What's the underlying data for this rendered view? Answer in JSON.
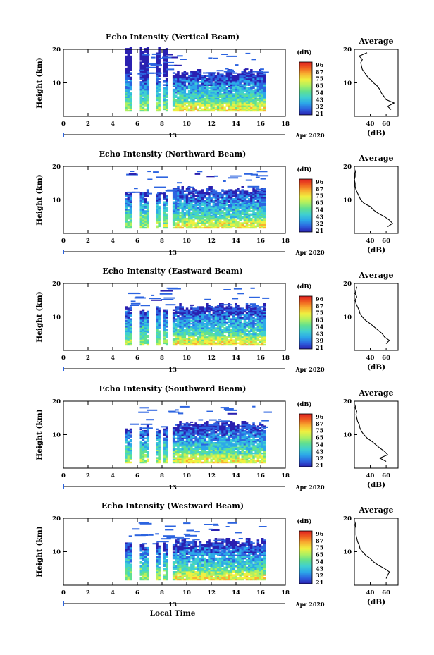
{
  "chart_data": [
    {
      "type": "heatmap",
      "title": "Echo Intensity (Vertical Beam)",
      "ylabel": "Height (km)",
      "xlim": [
        0,
        18
      ],
      "ylim": [
        0,
        20
      ],
      "xticks": [
        "0",
        "2",
        "4",
        "6",
        "8",
        "10",
        "12",
        "14",
        "16",
        "18"
      ],
      "yticks": [
        "10",
        "20"
      ],
      "date_label": "13",
      "month_year": "Apr 2020",
      "colorbar": {
        "unit": "(dB)",
        "labels": [
          "96",
          "87",
          "75",
          "65",
          "54",
          "43",
          "32",
          "21"
        ]
      },
      "profile": {
        "title": "Average",
        "xlabel": "(dB)",
        "xticks": [
          "40",
          "60"
        ],
        "yticks": [
          "10",
          "20"
        ],
        "heights": [
          2,
          3,
          4,
          5,
          6,
          7,
          8,
          9,
          10,
          11,
          12,
          13,
          14,
          15,
          16,
          17,
          18,
          19
        ],
        "values": [
          66,
          62,
          70,
          60,
          57,
          54,
          52,
          49,
          44,
          40,
          36,
          33,
          30,
          29,
          28,
          30,
          26,
          36
        ]
      }
    },
    {
      "type": "heatmap",
      "title": "Echo Intensity (Northward Beam)",
      "ylabel": "Height (km)",
      "xlim": [
        0,
        18
      ],
      "ylim": [
        0,
        20
      ],
      "xticks": [
        "0",
        "2",
        "4",
        "6",
        "8",
        "10",
        "12",
        "14",
        "16",
        "18"
      ],
      "yticks": [
        "10",
        "20"
      ],
      "date_label": "13",
      "month_year": "Apr 2020",
      "colorbar": {
        "unit": "(dB)",
        "labels": [
          "96",
          "87",
          "75",
          "65",
          "54",
          "43",
          "32",
          "21"
        ]
      },
      "profile": {
        "title": "Average",
        "xlabel": "(dB)",
        "xticks": [
          "40",
          "60"
        ],
        "yticks": [
          "10",
          "20"
        ],
        "heights": [
          2,
          3,
          4,
          5,
          6,
          7,
          8,
          9,
          10,
          11,
          12,
          13,
          14,
          15,
          16,
          17,
          18,
          19
        ],
        "values": [
          62,
          68,
          64,
          58,
          50,
          44,
          40,
          32,
          28,
          26,
          24,
          22,
          21,
          21,
          20,
          21,
          21,
          22
        ]
      }
    },
    {
      "type": "heatmap",
      "title": "Echo Intensity (Eastward Beam)",
      "ylabel": "Height (km)",
      "xlim": [
        0,
        18
      ],
      "ylim": [
        0,
        20
      ],
      "xticks": [
        "0",
        "2",
        "4",
        "6",
        "8",
        "10",
        "12",
        "14",
        "16",
        "18"
      ],
      "yticks": [
        "10",
        "20"
      ],
      "date_label": "13",
      "month_year": "Apr 2020",
      "colorbar": {
        "unit": "(dB)",
        "labels": [
          "96",
          "87",
          "75",
          "65",
          "54",
          "43",
          "39",
          "21"
        ]
      },
      "profile": {
        "title": "Average",
        "xlabel": "(dB)",
        "xticks": [
          "40",
          "60"
        ],
        "yticks": [
          "10",
          "20"
        ],
        "heights": [
          2,
          3,
          4,
          5,
          6,
          7,
          8,
          9,
          10,
          11,
          12,
          13,
          14,
          15,
          16,
          17,
          18,
          19
        ],
        "values": [
          60,
          64,
          58,
          55,
          50,
          45,
          40,
          34,
          30,
          27,
          26,
          24,
          22,
          21,
          23,
          21,
          22,
          23
        ]
      }
    },
    {
      "type": "heatmap",
      "title": "Echo Intensity (Southward Beam)",
      "ylabel": "Height (km)",
      "xlim": [
        0,
        18
      ],
      "ylim": [
        0,
        20
      ],
      "xticks": [
        "0",
        "2",
        "4",
        "6",
        "8",
        "10",
        "12",
        "14",
        "16",
        "18"
      ],
      "yticks": [
        "10",
        "20"
      ],
      "date_label": "13",
      "month_year": "Apr 2020",
      "colorbar": {
        "unit": "(dB)",
        "labels": [
          "96",
          "87",
          "75",
          "65",
          "54",
          "43",
          "32",
          "21"
        ]
      },
      "profile": {
        "title": "Average",
        "xlabel": "(dB)",
        "xticks": [
          "40",
          "60"
        ],
        "yticks": [
          "10",
          "20"
        ],
        "heights": [
          2,
          3,
          4,
          5,
          6,
          7,
          8,
          9,
          10,
          11,
          12,
          13,
          14,
          15,
          16,
          17,
          18,
          19
        ],
        "values": [
          60,
          52,
          62,
          58,
          52,
          47,
          42,
          36,
          32,
          29,
          27,
          26,
          24,
          23,
          22,
          23,
          21,
          22
        ]
      }
    },
    {
      "type": "heatmap",
      "title": "Echo Intensity (Westward Beam)",
      "ylabel": "Height (km)",
      "xlabel": "Local Time",
      "xlim": [
        0,
        18
      ],
      "ylim": [
        0,
        20
      ],
      "xticks": [
        "0",
        "2",
        "4",
        "6",
        "8",
        "10",
        "12",
        "14",
        "16",
        "18"
      ],
      "yticks": [
        "10",
        "20"
      ],
      "date_label": "13",
      "month_year": "Apr 2020",
      "colorbar": {
        "unit": "(dB)",
        "labels": [
          "96",
          "87",
          "75",
          "65",
          "54",
          "43",
          "32",
          "21"
        ]
      },
      "profile": {
        "title": "Average",
        "xlabel": "(dB)",
        "xticks": [
          "40",
          "60"
        ],
        "yticks": [
          "10",
          "20"
        ],
        "heights": [
          2,
          3,
          4,
          5,
          6,
          7,
          8,
          9,
          10,
          11,
          12,
          13,
          14,
          15,
          16,
          17,
          18,
          19
        ],
        "values": [
          60,
          62,
          64,
          58,
          50,
          44,
          40,
          34,
          30,
          27,
          26,
          24,
          23,
          22,
          22,
          22,
          21,
          22
        ]
      }
    }
  ],
  "colors": {
    "scale": [
      "#2a20b0",
      "#2c64e0",
      "#2ca8e8",
      "#40d0d0",
      "#60e090",
      "#b0f060",
      "#f0f040",
      "#f8b030",
      "#f06020",
      "#e02020"
    ]
  }
}
